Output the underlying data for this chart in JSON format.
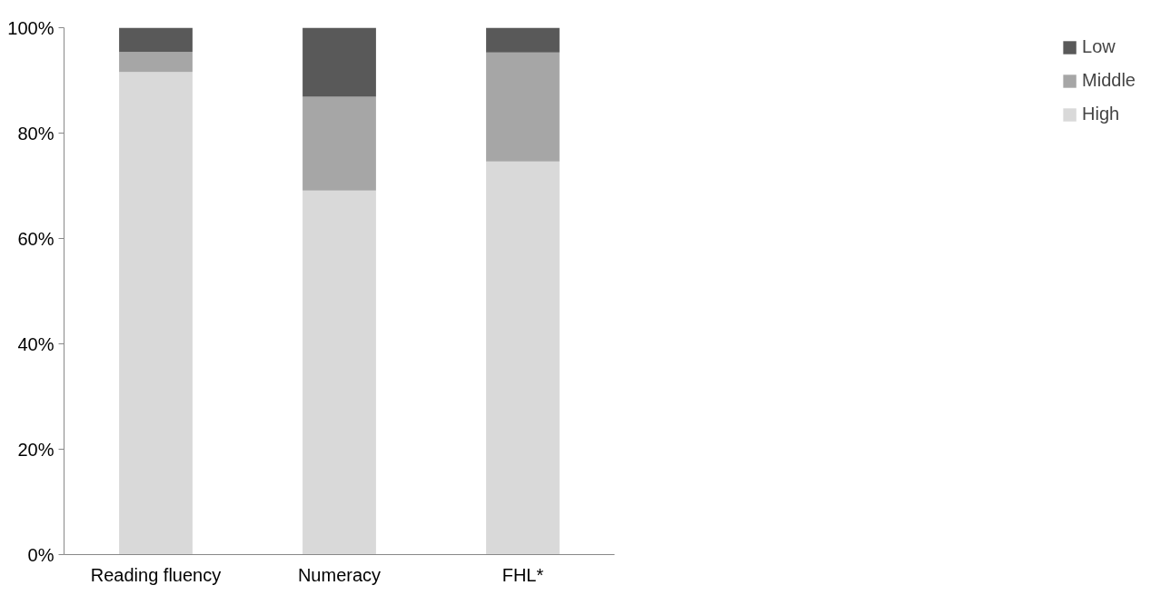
{
  "chart_data": {
    "type": "bar",
    "stacked": true,
    "categories": [
      "Reading fluency",
      "Numeracy",
      "FHL*"
    ],
    "series": [
      {
        "name": "High",
        "color": "#d9d9d9",
        "values": [
          91.6,
          69.1,
          74.6
        ]
      },
      {
        "name": "Middle",
        "color": "#a6a6a6",
        "values": [
          3.8,
          17.8,
          20.7
        ]
      },
      {
        "name": "Low",
        "color": "#595959",
        "values": [
          4.6,
          13.1,
          4.7
        ]
      }
    ],
    "ylim": [
      0,
      100
    ],
    "yticks": [
      {
        "value": 0,
        "label": "0%"
      },
      {
        "value": 20,
        "label": "20%"
      },
      {
        "value": 40,
        "label": "40%"
      },
      {
        "value": 60,
        "label": "60%"
      },
      {
        "value": 80,
        "label": "80%"
      },
      {
        "value": 100,
        "label": "100%"
      }
    ],
    "grid": false,
    "legend": "right"
  }
}
